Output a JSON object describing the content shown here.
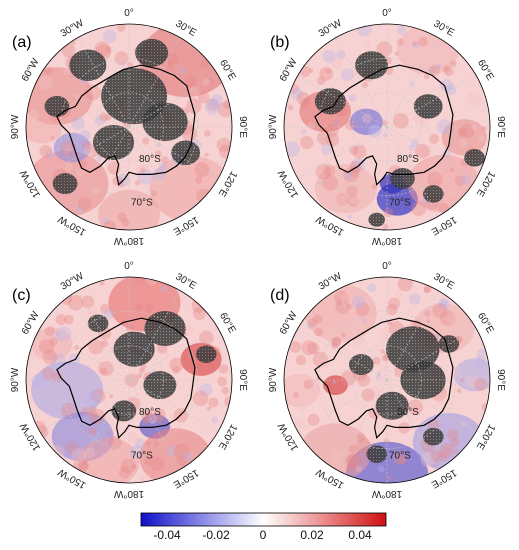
{
  "figure": {
    "panels": [
      {
        "label": "(a)",
        "pattern": "a"
      },
      {
        "label": "(b)",
        "pattern": "b"
      },
      {
        "label": "(c)",
        "pattern": "c"
      },
      {
        "label": "(d)",
        "pattern": "d"
      }
    ],
    "longitude_labels": [
      "0°",
      "30°E",
      "60°E",
      "90°E",
      "120°E",
      "150°E",
      "180°W",
      "150°W",
      "120°W",
      "90°W",
      "60°W",
      "30°W"
    ],
    "latitude_labels": [
      "80°S",
      "70°S"
    ],
    "colorbar": {
      "ticks": [
        "-0.04",
        "-0.02",
        "0",
        "0.02",
        "0.04"
      ],
      "min": -0.05,
      "max": 0.05,
      "colors": {
        "negative": "#1010c8",
        "zero": "#ffffff",
        "positive": "#d01010"
      }
    },
    "colors": {
      "land_contour": "#000000",
      "stipple": "#2a2a2a",
      "grid": "#c8c8c8"
    }
  }
}
